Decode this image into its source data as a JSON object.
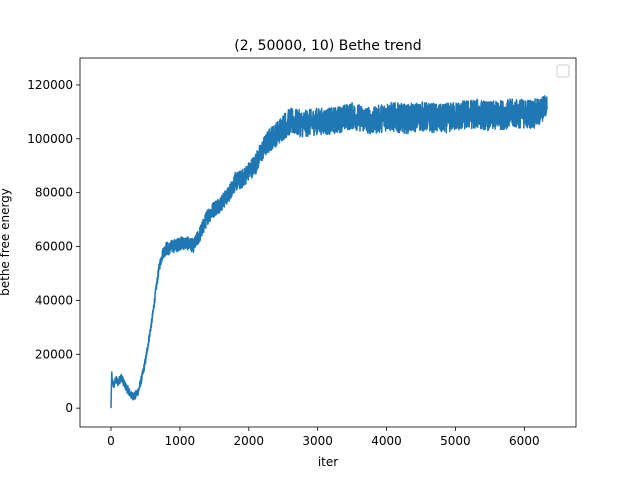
{
  "chart_data": {
    "type": "line",
    "title": "(2, 50000, 10) Bethe trend",
    "xlabel": "iter",
    "ylabel": "bethe free energy",
    "xlim": [
      -450,
      6750
    ],
    "ylim": [
      -7000,
      130000
    ],
    "xticks": [
      0,
      1000,
      2000,
      3000,
      4000,
      5000,
      6000
    ],
    "yticks": [
      0,
      20000,
      40000,
      60000,
      80000,
      100000,
      120000
    ],
    "xtick_labels": [
      "0",
      "1000",
      "2000",
      "3000",
      "4000",
      "5000",
      "6000"
    ],
    "ytick_labels": [
      "0",
      "20000",
      "40000",
      "60000",
      "80000",
      "100000",
      "120000"
    ],
    "grid": false,
    "legend": "top-right (empty)",
    "line_color": "#1f77b4",
    "series": [
      {
        "x": [
          0,
          10,
          20,
          40,
          70,
          100,
          150,
          200,
          250,
          300,
          350,
          400,
          450,
          500,
          550,
          600,
          650,
          700,
          750,
          800,
          850,
          900,
          950,
          1000,
          1100,
          1200,
          1300,
          1400,
          1500,
          1600,
          1700,
          1800,
          1900,
          2000,
          2100,
          2200,
          2300,
          2400,
          2500,
          2600,
          2800,
          3000,
          3200,
          3500,
          3800,
          4000,
          4300,
          4500,
          4800,
          5000,
          5300,
          5500,
          5800,
          6000,
          6200,
          6330
        ],
        "y": [
          0,
          13000,
          10000,
          9000,
          11000,
          10000,
          12000,
          9000,
          7000,
          5000,
          5000,
          7000,
          12000,
          18000,
          26000,
          34000,
          44000,
          53000,
          58000,
          60000,
          60000,
          61000,
          61000,
          62000,
          62000,
          61000,
          66000,
          72000,
          75000,
          77000,
          80000,
          85000,
          86000,
          89000,
          92000,
          97000,
          101000,
          103000,
          106000,
          108000,
          107000,
          108000,
          108000,
          110000,
          108000,
          110000,
          109000,
          110000,
          109000,
          110000,
          111000,
          110000,
          111000,
          111000,
          111000,
          114000
        ],
        "noise_amplitude": [
          0,
          3000,
          3000,
          3000,
          3000,
          3000,
          3000,
          3000,
          3000,
          3000,
          3000,
          3000,
          3000,
          3000,
          3000,
          3000,
          3000,
          3500,
          4000,
          5000,
          5000,
          5000,
          5000,
          5000,
          5000,
          5000,
          6000,
          6000,
          6000,
          6000,
          6000,
          7000,
          7000,
          7000,
          8000,
          8000,
          9000,
          9000,
          10000,
          10000,
          10000,
          10000,
          10000,
          10000,
          10000,
          11000,
          11000,
          11000,
          11000,
          11000,
          11000,
          11000,
          11000,
          11000,
          11000,
          8000
        ]
      }
    ]
  }
}
